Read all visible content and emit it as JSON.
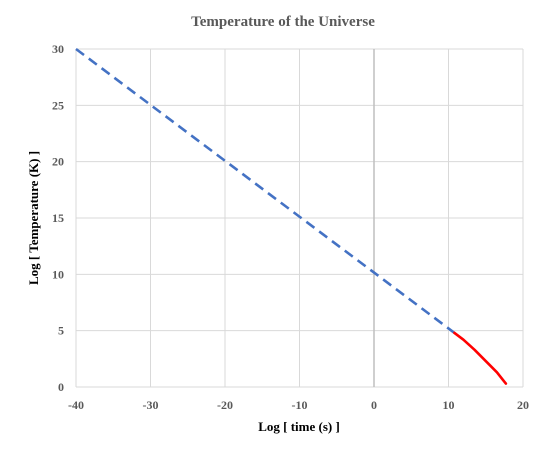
{
  "chart_data": {
    "type": "line",
    "title": "Temperature of the Universe",
    "xlabel": "Log [ time (s) ]",
    "ylabel": "Log [ Temperature (K) ]",
    "xlim": [
      -40,
      20
    ],
    "ylim": [
      0,
      30
    ],
    "xticks": [
      -40,
      -30,
      -20,
      -10,
      0,
      10,
      20
    ],
    "yticks": [
      0,
      5,
      10,
      15,
      20,
      25,
      30
    ],
    "xtick_labels": [
      "-40",
      "-30",
      "-20",
      "-10",
      "0",
      "10",
      "20"
    ],
    "ytick_labels": [
      "0",
      "5",
      "10",
      "15",
      "20",
      "25",
      "30"
    ],
    "grid": true,
    "legend": "none",
    "series": [
      {
        "style": "dashed",
        "color": "#4472c4",
        "x": [
          -40,
          10.8
        ],
        "y": [
          30,
          4.8
        ]
      },
      {
        "style": "solid",
        "color": "#ff0000",
        "x": [
          10.8,
          12,
          13.5,
          15,
          16.5,
          17.7
        ],
        "y": [
          4.8,
          4.2,
          3.3,
          2.3,
          1.3,
          0.3
        ]
      }
    ]
  }
}
